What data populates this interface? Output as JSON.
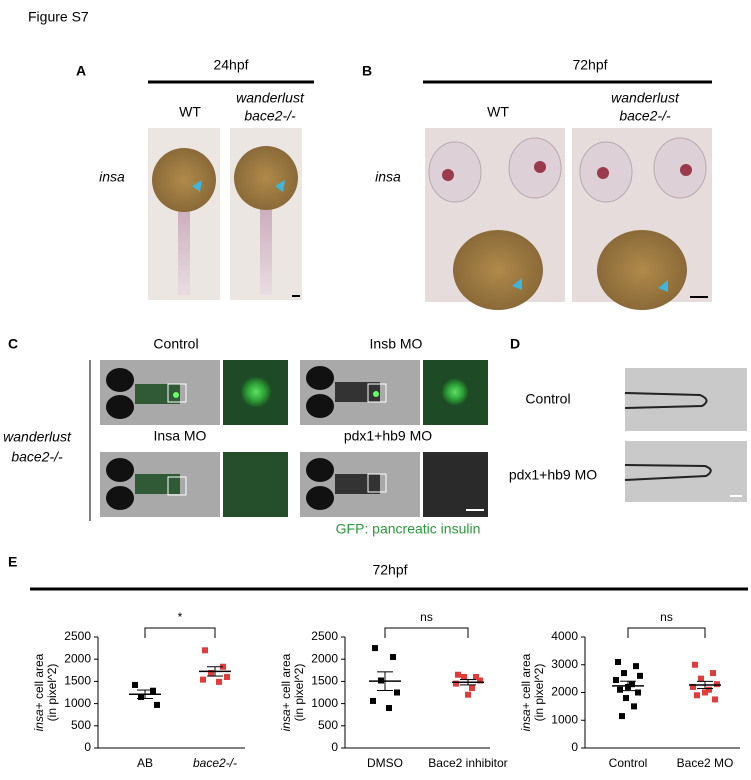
{
  "figure_title": "Figure S7",
  "panels": {
    "A": {
      "label": "A",
      "stage": "24hpf",
      "wt": "WT",
      "mutant_line1": "wanderlust",
      "mutant_line2": "bace2-/-",
      "probe": "insa"
    },
    "B": {
      "label": "B",
      "stage": "72hpf",
      "wt": "WT",
      "mutant_line1": "wanderlust",
      "mutant_line2": "bace2-/-",
      "probe": "insa"
    },
    "C": {
      "label": "C",
      "row_label_line1": "wanderlust",
      "row_label_line2": "bace2-/-",
      "conditions": [
        "Control",
        "Insb MO",
        "Insa MO",
        "pdx1+hb9 MO"
      ],
      "caption": "GFP: pancreatic insulin"
    },
    "D": {
      "label": "D",
      "conditions": [
        "Control",
        "pdx1+hb9 MO"
      ]
    },
    "E": {
      "label": "E",
      "stage": "72hpf"
    }
  },
  "chart_data": [
    {
      "type": "scatter",
      "ylabel_italic": "insa",
      "ylabel": "+ cell area",
      "ylabel2": "(in pixel^2)",
      "categories": [
        "AB",
        "bace2-/-"
      ],
      "significance": "*",
      "series": [
        {
          "color": "#000000",
          "values": [
            1420,
            1290,
            1150,
            970
          ],
          "mean": 1210,
          "sem": 95
        },
        {
          "color": "#e03c3c",
          "values": [
            2200,
            1830,
            1690,
            1600,
            1540,
            1490
          ],
          "mean": 1725,
          "sem": 105
        }
      ],
      "ylim": [
        0,
        2500
      ],
      "yticks": [
        0,
        500,
        1000,
        1500,
        2000,
        2500
      ]
    },
    {
      "type": "scatter",
      "ylabel_italic": "insa",
      "ylabel": "+ cell area",
      "ylabel2": "(in pixel^2)",
      "categories": [
        "DMSO",
        "Bace2 inhibitor"
      ],
      "significance": "ns",
      "series": [
        {
          "color": "#000000",
          "values": [
            2250,
            2050,
            1520,
            1250,
            1060,
            900
          ],
          "mean": 1505,
          "sem": 210
        },
        {
          "color": "#e03c3c",
          "values": [
            1650,
            1600,
            1600,
            1520,
            1450,
            1350,
            1200
          ],
          "mean": 1481,
          "sem": 60
        }
      ],
      "ylim": [
        0,
        2500
      ],
      "yticks": [
        0,
        500,
        1000,
        1500,
        2000,
        2500
      ]
    },
    {
      "type": "scatter",
      "ylabel_italic": "insa",
      "ylabel": "+ cell area",
      "ylabel2": "(in pixel^2)",
      "categories": [
        "Control",
        "Bace2 MO"
      ],
      "significance": "ns",
      "series": [
        {
          "color": "#000000",
          "values": [
            3100,
            2950,
            2700,
            2600,
            2450,
            2300,
            2200,
            2100,
            2000,
            1800,
            1500,
            1150
          ],
          "mean": 2237,
          "sem": 170
        },
        {
          "color": "#e03c3c",
          "values": [
            3000,
            2700,
            2500,
            2300,
            2200,
            2100,
            2000,
            1900,
            1750
          ],
          "mean": 2272,
          "sem": 130
        }
      ],
      "ylim": [
        0,
        4000
      ],
      "yticks": [
        0,
        1000,
        2000,
        3000,
        4000
      ]
    }
  ]
}
